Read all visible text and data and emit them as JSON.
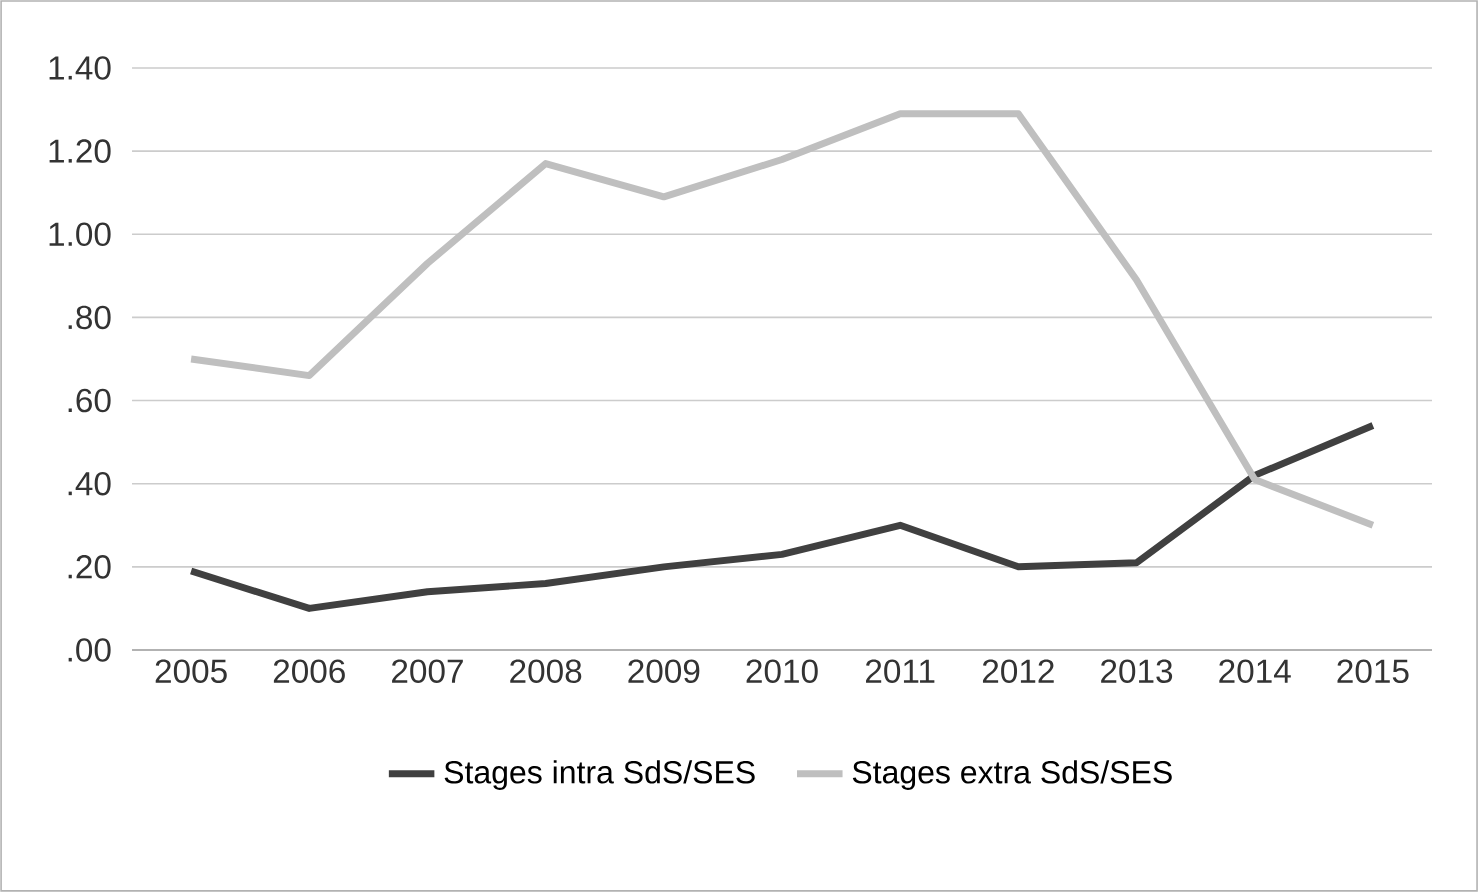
{
  "chart_data": {
    "type": "line",
    "categories": [
      "2005",
      "2006",
      "2007",
      "2008",
      "2009",
      "2010",
      "2011",
      "2012",
      "2013",
      "2014",
      "2015"
    ],
    "series": [
      {
        "name": "Stages intra SdS/SES",
        "color": "#404040",
        "values": [
          0.19,
          0.1,
          0.14,
          0.16,
          0.2,
          0.23,
          0.3,
          0.2,
          0.21,
          0.42,
          0.54
        ]
      },
      {
        "name": "Stages extra SdS/SES",
        "color": "#bfbfbf",
        "values": [
          0.7,
          0.66,
          0.93,
          1.17,
          1.09,
          1.18,
          1.29,
          1.29,
          0.89,
          0.41,
          0.3
        ]
      }
    ],
    "ylim": [
      0,
      1.4
    ],
    "yticks": [
      {
        "value": 0,
        "label": ".00"
      },
      {
        "value": 0.2,
        "label": ".20"
      },
      {
        "value": 0.4,
        "label": ".40"
      },
      {
        "value": 0.6,
        "label": ".60"
      },
      {
        "value": 0.8,
        "label": ".80"
      },
      {
        "value": 1.0,
        "label": "1.00"
      },
      {
        "value": 1.2,
        "label": "1.20"
      },
      {
        "value": 1.4,
        "label": "1.40"
      }
    ],
    "grid": "y",
    "legend": "bottom",
    "marker": "none",
    "line_style": "solid"
  }
}
